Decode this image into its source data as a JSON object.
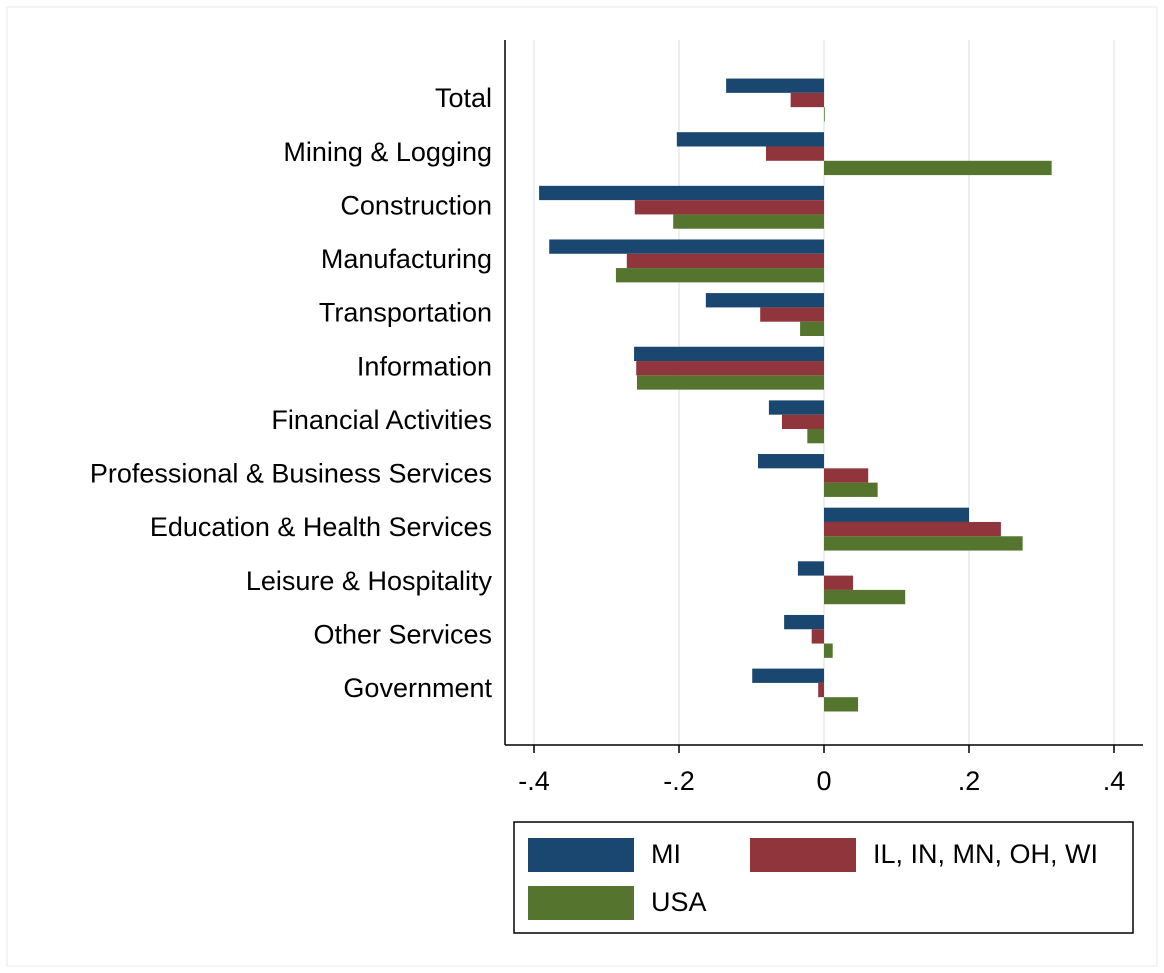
{
  "chart_data": {
    "type": "barh",
    "categories": [
      "Total",
      "Mining & Logging",
      "Construction",
      "Manufacturing",
      "Transportation",
      "Information",
      "Financial Activities",
      "Professional & Business Services",
      "Education & Health Services",
      "Leisure & Hospitality",
      "Other Services",
      "Government"
    ],
    "series": [
      {
        "name": "MI",
        "color": "#1a476f",
        "values": [
          -0.135,
          -0.203,
          -0.393,
          -0.379,
          -0.163,
          -0.262,
          -0.076,
          -0.091,
          0.2,
          -0.036,
          -0.055,
          -0.099
        ]
      },
      {
        "name": "IL, IN, MN, OH, WI",
        "color": "#90353b",
        "values": [
          -0.046,
          -0.08,
          -0.261,
          -0.272,
          -0.088,
          -0.259,
          -0.058,
          0.061,
          0.244,
          0.04,
          -0.017,
          -0.008
        ]
      },
      {
        "name": "USA",
        "color": "#55752f",
        "values": [
          0.001,
          0.314,
          -0.208,
          -0.287,
          -0.033,
          -0.258,
          -0.023,
          0.074,
          0.274,
          0.112,
          0.012,
          0.047
        ]
      }
    ],
    "xlim": [
      -0.44,
      0.44
    ],
    "xticks": [
      {
        "value": -0.4,
        "label": "-.4"
      },
      {
        "value": -0.2,
        "label": "-.2"
      },
      0,
      {
        "value": 0.2,
        "label": ".2"
      },
      {
        "value": 0.4,
        "label": ".4"
      }
    ],
    "grid": true,
    "legend_position": "bottom"
  }
}
